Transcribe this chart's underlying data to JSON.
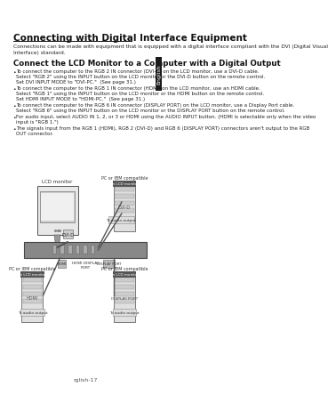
{
  "title": "Connecting with Digital Interface Equipment",
  "subtitle": "Connections can be made with equipment that is equipped with a digital interface compliant with the DVI (Digital Visual\nInterface) standard.",
  "section_title": "Connect the LCD Monitor to a Computer with a Digital Output",
  "bullets": [
    "To connect the computer to the RGB 2 IN connector (DVI-D) on the LCD monitor, use a DVI-D cable.\n  Select \"RGB 2\" using the INPUT button on the LCD monitor or the DVI-D button on the remote control.\n  Set DVI INPUT MODE to \"DVI-PC.\"  (See page 31.)",
    "To connect the computer to the RGB 1 IN connector (HDMI) on the LCD monitor, use an HDMI cable.\n  Select \"RGB 1\" using the INPUT button on the LCD monitor or the HDMI button on the remote control.\n  Set HDMI INPUT MODE to \"HDMI-PC.\"  (See page 31.)",
    "To connect the computer to the RGB 6 IN connector (DISPLAY PORT) on the LCD monitor, use a Display Port cable.\n  Select \"RGB 6\" using the INPUT button on the LCD monitor or the DISPLAY PORT button on the remote control.",
    "For audio input, select AUDIO IN 1, 2, or 3 or HDMI using the AUDIO INPUT button. (HDMI is selectable only when the video\n  input is \"RGB 1.\")",
    "The signals input from the RGB 1 (HDMI), RGB 2 (DVI-D) and RGB 6 (DISPLAY PORT) connectors aren't output to the RGB\n  OUT connector."
  ],
  "tab_label": "English",
  "page_label": "rglish-17",
  "bg_color": "#ffffff",
  "tab_bg": "#1a1a1a",
  "tab_text": "#ffffff",
  "title_underline": true,
  "diagram_labels": {
    "lcd_monitor": "LCD monitor",
    "pc_ibm1": "PC or IBM compatible",
    "pc_ibm2": "PC or IBM compatible",
    "pc_ibm3": "PC or IBM compatible",
    "dvi_d": "DVI-D",
    "hdmi": "HDMI",
    "display_port": "DISPLAY PORT",
    "to_audio1": "To audio output",
    "to_audio2": "To audio output",
    "to_audio3": "To audio output",
    "hdmi_display": "HDMI DISPLAY\nPORT",
    "on_lcd_monitor1": "on LCD monitor",
    "on_lcd_monitor2": "on LCD monitor",
    "on_lcd_monitor3": "on LCD monitor"
  }
}
